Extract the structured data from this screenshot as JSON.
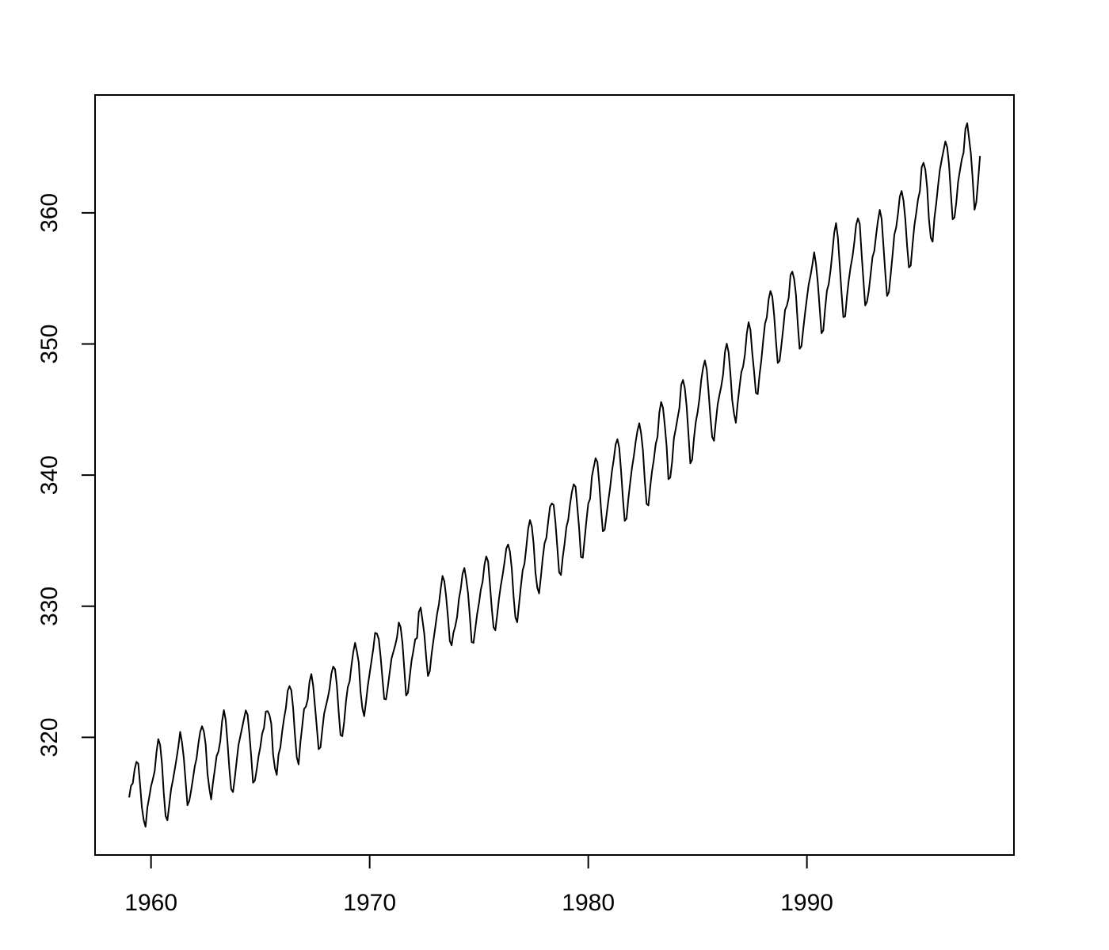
{
  "chart_data": {
    "type": "line",
    "color": "#000000",
    "x": [
      1959,
      1959.083,
      1959.167,
      1959.25,
      1959.333,
      1959.417,
      1959.5,
      1959.583,
      1959.667,
      1959.75,
      1959.833,
      1959.917,
      1960,
      1960.083,
      1960.167,
      1960.25,
      1960.333,
      1960.417,
      1960.5,
      1960.583,
      1960.667,
      1960.75,
      1960.833,
      1960.917,
      1961,
      1961.083,
      1961.167,
      1961.25,
      1961.333,
      1961.417,
      1961.5,
      1961.583,
      1961.667,
      1961.75,
      1961.833,
      1961.917,
      1962,
      1962.083,
      1962.167,
      1962.25,
      1962.333,
      1962.417,
      1962.5,
      1962.583,
      1962.667,
      1962.75,
      1962.833,
      1962.917,
      1963,
      1963.083,
      1963.167,
      1963.25,
      1963.333,
      1963.417,
      1963.5,
      1963.583,
      1963.667,
      1963.75,
      1963.833,
      1963.917,
      1964,
      1964.083,
      1964.167,
      1964.25,
      1964.333,
      1964.417,
      1964.5,
      1964.583,
      1964.667,
      1964.75,
      1964.833,
      1964.917,
      1965,
      1965.083,
      1965.167,
      1965.25,
      1965.333,
      1965.417,
      1965.5,
      1965.583,
      1965.667,
      1965.75,
      1965.833,
      1965.917,
      1966,
      1966.083,
      1966.167,
      1966.25,
      1966.333,
      1966.417,
      1966.5,
      1966.583,
      1966.667,
      1966.75,
      1966.833,
      1966.917,
      1967,
      1967.083,
      1967.167,
      1967.25,
      1967.333,
      1967.417,
      1967.5,
      1967.583,
      1967.667,
      1967.75,
      1967.833,
      1967.917,
      1968,
      1968.083,
      1968.167,
      1968.25,
      1968.333,
      1968.417,
      1968.5,
      1968.583,
      1968.667,
      1968.75,
      1968.833,
      1968.917,
      1969,
      1969.083,
      1969.167,
      1969.25,
      1969.333,
      1969.417,
      1969.5,
      1969.583,
      1969.667,
      1969.75,
      1969.833,
      1969.917,
      1970,
      1970.083,
      1970.167,
      1970.25,
      1970.333,
      1970.417,
      1970.5,
      1970.583,
      1970.667,
      1970.75,
      1970.833,
      1970.917,
      1971,
      1971.083,
      1971.167,
      1971.25,
      1971.333,
      1971.417,
      1971.5,
      1971.583,
      1971.667,
      1971.75,
      1971.833,
      1971.917,
      1972,
      1972.083,
      1972.167,
      1972.25,
      1972.333,
      1972.417,
      1972.5,
      1972.583,
      1972.667,
      1972.75,
      1972.833,
      1972.917,
      1973,
      1973.083,
      1973.167,
      1973.25,
      1973.333,
      1973.417,
      1973.5,
      1973.583,
      1973.667,
      1973.75,
      1973.833,
      1973.917,
      1974,
      1974.083,
      1974.167,
      1974.25,
      1974.333,
      1974.417,
      1974.5,
      1974.583,
      1974.667,
      1974.75,
      1974.833,
      1974.917,
      1975,
      1975.083,
      1975.167,
      1975.25,
      1975.333,
      1975.417,
      1975.5,
      1975.583,
      1975.667,
      1975.75,
      1975.833,
      1975.917,
      1976,
      1976.083,
      1976.167,
      1976.25,
      1976.333,
      1976.417,
      1976.5,
      1976.583,
      1976.667,
      1976.75,
      1976.833,
      1976.917,
      1977,
      1977.083,
      1977.167,
      1977.25,
      1977.333,
      1977.417,
      1977.5,
      1977.583,
      1977.667,
      1977.75,
      1977.833,
      1977.917,
      1978,
      1978.083,
      1978.167,
      1978.25,
      1978.333,
      1978.417,
      1978.5,
      1978.583,
      1978.667,
      1978.75,
      1978.833,
      1978.917,
      1979,
      1979.083,
      1979.167,
      1979.25,
      1979.333,
      1979.417,
      1979.5,
      1979.583,
      1979.667,
      1979.75,
      1979.833,
      1979.917,
      1980,
      1980.083,
      1980.167,
      1980.25,
      1980.333,
      1980.417,
      1980.5,
      1980.583,
      1980.667,
      1980.75,
      1980.833,
      1980.917,
      1981,
      1981.083,
      1981.167,
      1981.25,
      1981.333,
      1981.417,
      1981.5,
      1981.583,
      1981.667,
      1981.75,
      1981.833,
      1981.917,
      1982,
      1982.083,
      1982.167,
      1982.25,
      1982.333,
      1982.417,
      1982.5,
      1982.583,
      1982.667,
      1982.75,
      1982.833,
      1982.917,
      1983,
      1983.083,
      1983.167,
      1983.25,
      1983.333,
      1983.417,
      1983.5,
      1983.583,
      1983.667,
      1983.75,
      1983.833,
      1983.917,
      1984,
      1984.083,
      1984.167,
      1984.25,
      1984.333,
      1984.417,
      1984.5,
      1984.583,
      1984.667,
      1984.75,
      1984.833,
      1984.917,
      1985,
      1985.083,
      1985.167,
      1985.25,
      1985.333,
      1985.417,
      1985.5,
      1985.583,
      1985.667,
      1985.75,
      1985.833,
      1985.917,
      1986,
      1986.083,
      1986.167,
      1986.25,
      1986.333,
      1986.417,
      1986.5,
      1986.583,
      1986.667,
      1986.75,
      1986.833,
      1986.917,
      1987,
      1987.083,
      1987.167,
      1987.25,
      1987.333,
      1987.417,
      1987.5,
      1987.583,
      1987.667,
      1987.75,
      1987.833,
      1987.917,
      1988,
      1988.083,
      1988.167,
      1988.25,
      1988.333,
      1988.417,
      1988.5,
      1988.583,
      1988.667,
      1988.75,
      1988.833,
      1988.917,
      1989,
      1989.083,
      1989.167,
      1989.25,
      1989.333,
      1989.417,
      1989.5,
      1989.583,
      1989.667,
      1989.75,
      1989.833,
      1989.917,
      1990,
      1990.083,
      1990.167,
      1990.25,
      1990.333,
      1990.417,
      1990.5,
      1990.583,
      1990.667,
      1990.75,
      1990.833,
      1990.917,
      1991,
      1991.083,
      1991.167,
      1991.25,
      1991.333,
      1991.417,
      1991.5,
      1991.583,
      1991.667,
      1991.75,
      1991.833,
      1991.917,
      1992,
      1992.083,
      1992.167,
      1992.25,
      1992.333,
      1992.417,
      1992.5,
      1992.583,
      1992.667,
      1992.75,
      1992.833,
      1992.917,
      1993,
      1993.083,
      1993.167,
      1993.25,
      1993.333,
      1993.417,
      1993.5,
      1993.583,
      1993.667,
      1993.75,
      1993.833,
      1993.917,
      1994,
      1994.083,
      1994.167,
      1994.25,
      1994.333,
      1994.417,
      1994.5,
      1994.583,
      1994.667,
      1994.75,
      1994.833,
      1994.917,
      1995,
      1995.083,
      1995.167,
      1995.25,
      1995.333,
      1995.417,
      1995.5,
      1995.583,
      1995.667,
      1995.75,
      1995.833,
      1995.917,
      1996,
      1996.083,
      1996.167,
      1996.25,
      1996.333,
      1996.417,
      1996.5,
      1996.583,
      1996.667,
      1996.75,
      1996.833,
      1996.917,
      1997,
      1997.083,
      1997.167,
      1997.25,
      1997.333,
      1997.417,
      1997.5,
      1997.583,
      1997.667,
      1997.75,
      1997.833,
      1997.917
    ],
    "values": [
      315.42,
      316.31,
      316.5,
      317.56,
      318.13,
      318.0,
      316.39,
      314.65,
      313.68,
      313.18,
      314.66,
      315.43,
      316.27,
      316.81,
      317.42,
      318.87,
      319.87,
      319.43,
      318.01,
      315.74,
      314.0,
      313.68,
      314.84,
      316.03,
      316.73,
      317.54,
      318.38,
      319.31,
      320.42,
      319.61,
      318.42,
      316.63,
      314.83,
      315.16,
      315.94,
      316.85,
      317.78,
      318.4,
      319.53,
      320.42,
      320.85,
      320.45,
      319.45,
      317.25,
      316.11,
      315.27,
      316.53,
      317.53,
      318.58,
      318.92,
      319.7,
      321.22,
      322.08,
      321.31,
      319.58,
      317.61,
      316.05,
      315.83,
      316.91,
      318.2,
      319.41,
      320.07,
      320.74,
      321.4,
      322.06,
      321.73,
      320.27,
      318.54,
      316.54,
      316.71,
      317.53,
      318.55,
      319.27,
      320.28,
      320.73,
      321.97,
      322.0,
      321.71,
      321.05,
      318.71,
      317.66,
      317.14,
      318.7,
      319.25,
      320.46,
      321.43,
      322.23,
      323.54,
      323.91,
      323.59,
      322.24,
      320.2,
      318.48,
      317.94,
      319.63,
      320.87,
      322.17,
      322.34,
      322.88,
      324.25,
      324.83,
      323.93,
      322.38,
      320.76,
      319.1,
      319.24,
      320.56,
      321.8,
      322.4,
      322.99,
      323.73,
      324.86,
      325.4,
      325.2,
      323.98,
      321.95,
      320.18,
      320.09,
      321.16,
      322.74,
      323.83,
      324.26,
      325.47,
      326.5,
      327.21,
      326.54,
      325.72,
      323.5,
      322.22,
      321.62,
      322.69,
      323.95,
      324.89,
      325.82,
      326.77,
      327.97,
      327.91,
      327.5,
      326.18,
      324.53,
      322.93,
      322.9,
      323.85,
      324.96,
      326.01,
      326.51,
      327.01,
      327.62,
      328.76,
      328.4,
      327.2,
      325.27,
      323.2,
      323.4,
      324.63,
      325.85,
      326.6,
      327.47,
      327.58,
      329.56,
      329.9,
      328.92,
      327.88,
      326.16,
      324.68,
      325.04,
      326.34,
      327.39,
      328.37,
      329.4,
      330.14,
      331.33,
      332.31,
      331.9,
      330.7,
      329.15,
      327.35,
      327.02,
      327.99,
      328.48,
      329.18,
      330.55,
      331.32,
      332.48,
      332.92,
      332.08,
      331.01,
      329.23,
      327.27,
      327.21,
      328.29,
      329.41,
      330.23,
      331.25,
      331.87,
      333.14,
      333.8,
      333.43,
      331.73,
      329.9,
      328.4,
      328.17,
      329.32,
      330.59,
      331.58,
      332.39,
      333.33,
      334.41,
      334.71,
      334.17,
      332.89,
      330.77,
      329.14,
      328.78,
      330.14,
      331.52,
      332.75,
      333.24,
      334.53,
      335.9,
      336.57,
      336.1,
      334.76,
      332.59,
      331.42,
      330.98,
      332.24,
      333.68,
      334.8,
      335.22,
      336.47,
      337.59,
      337.84,
      337.72,
      336.37,
      334.51,
      332.6,
      332.38,
      333.75,
      334.78,
      336.05,
      336.59,
      337.79,
      338.71,
      339.3,
      339.12,
      337.56,
      335.92,
      333.75,
      333.7,
      335.12,
      336.56,
      337.84,
      338.19,
      339.91,
      340.6,
      341.29,
      341.0,
      339.39,
      337.43,
      335.72,
      335.84,
      336.93,
      338.04,
      339.06,
      340.3,
      341.21,
      342.33,
      342.74,
      342.08,
      340.32,
      338.26,
      336.52,
      336.68,
      338.19,
      339.44,
      340.57,
      341.44,
      342.53,
      343.39,
      343.96,
      343.18,
      341.88,
      339.65,
      337.81,
      337.69,
      339.09,
      340.32,
      341.2,
      342.35,
      342.93,
      344.77,
      345.58,
      345.14,
      343.81,
      342.21,
      339.69,
      339.82,
      340.98,
      342.82,
      343.52,
      344.33,
      345.11,
      346.88,
      347.25,
      346.62,
      345.22,
      343.11,
      340.9,
      341.18,
      342.8,
      344.04,
      344.79,
      345.82,
      347.25,
      348.17,
      348.74,
      348.07,
      346.38,
      344.51,
      342.92,
      342.62,
      344.06,
      345.38,
      346.11,
      346.78,
      347.68,
      349.37,
      350.03,
      349.37,
      347.76,
      345.73,
      344.68,
      343.99,
      345.48,
      346.72,
      347.84,
      348.29,
      349.23,
      350.8,
      351.66,
      351.07,
      349.33,
      347.92,
      346.27,
      346.18,
      347.64,
      348.78,
      350.25,
      351.54,
      352.05,
      353.41,
      354.04,
      353.62,
      352.22,
      350.27,
      348.55,
      348.72,
      349.91,
      351.18,
      352.6,
      352.92,
      353.53,
      355.26,
      355.52,
      354.97,
      353.75,
      351.52,
      349.64,
      349.83,
      351.14,
      352.37,
      353.5,
      354.55,
      355.23,
      356.04,
      357.0,
      356.07,
      354.67,
      352.76,
      350.82,
      351.04,
      352.69,
      354.07,
      354.59,
      355.63,
      357.03,
      358.48,
      359.22,
      358.12,
      356.06,
      353.92,
      352.05,
      352.11,
      353.64,
      354.89,
      355.88,
      356.63,
      357.72,
      359.07,
      359.58,
      359.17,
      356.94,
      354.92,
      352.94,
      353.23,
      354.09,
      355.33,
      356.63,
      357.1,
      358.32,
      359.41,
      360.23,
      359.55,
      357.53,
      355.48,
      353.67,
      353.95,
      355.3,
      356.78,
      358.34,
      358.89,
      359.95,
      361.25,
      361.67,
      360.94,
      359.55,
      357.49,
      355.84,
      356.0,
      357.59,
      359.05,
      359.98,
      361.03,
      361.66,
      363.48,
      363.82,
      363.3,
      361.94,
      359.5,
      358.11,
      357.8,
      359.61,
      360.74,
      362.09,
      363.29,
      364.06,
      364.76,
      365.45,
      365.01,
      363.7,
      361.54,
      359.51,
      359.65,
      360.8,
      362.38,
      363.23,
      364.06,
      364.61,
      366.4,
      366.84,
      365.68,
      364.52,
      362.57,
      360.24,
      360.83,
      362.49,
      364.34
    ],
    "xlim": [
      1957.44,
      1999.47
    ],
    "xticks": [
      1960,
      1970,
      1980,
      1990
    ],
    "ylim": [
      311.03,
      368.99
    ],
    "yticks": [
      320,
      330,
      340,
      350,
      360
    ]
  }
}
